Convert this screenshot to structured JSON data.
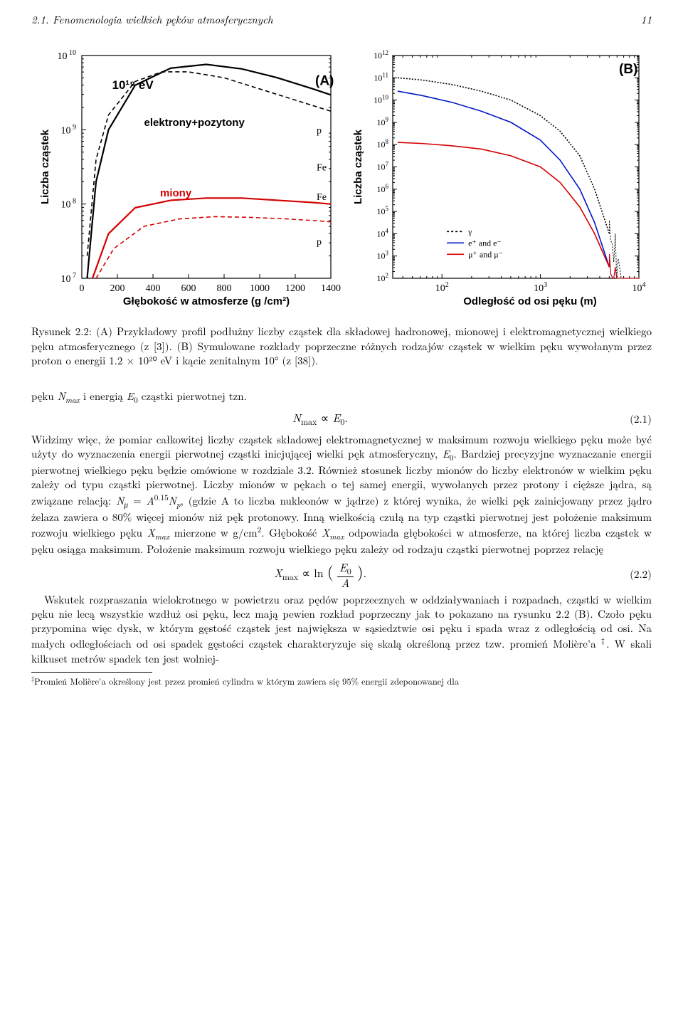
{
  "header": {
    "section": "2.1. Fenomenologia wielkich pęków atmosferycznych",
    "page": "11"
  },
  "figure": {
    "panelA": {
      "label": "(A)",
      "xlabel": "Głębokość w atmosferze (g /cm²)",
      "ylabel": "Liczba cząstek",
      "xlim": [
        0,
        1400
      ],
      "xticks": [
        0,
        200,
        400,
        600,
        800,
        1000,
        1200,
        1400
      ],
      "ylim_log10": [
        7,
        10
      ],
      "yticks_log10": [
        7,
        8,
        9,
        10
      ],
      "ytick_labels": [
        "10 ⁷",
        "10 ⁸",
        "10 ⁹",
        "10 ¹⁰"
      ],
      "annot_energy": "10¹⁹ eV",
      "label_ep": "elektrony+pozytony",
      "label_mu": "miony",
      "markers": [
        "p",
        "Fe",
        "Fe",
        "p"
      ],
      "colors": {
        "ep_solid": "#000000",
        "ep_dash": "#000000",
        "mu_solid": "#d40000",
        "mu_dash": "#d40000",
        "text_ep": "#000000",
        "text_mu": "#d40000"
      },
      "curves": {
        "ep_p_solid": [
          [
            30,
            7.0
          ],
          [
            80,
            8.3
          ],
          [
            150,
            9.0
          ],
          [
            300,
            9.6
          ],
          [
            500,
            9.83
          ],
          [
            700,
            9.88
          ],
          [
            900,
            9.82
          ],
          [
            1100,
            9.7
          ],
          [
            1300,
            9.55
          ],
          [
            1400,
            9.47
          ]
        ],
        "ep_Fe_dash": [
          [
            30,
            7.3
          ],
          [
            80,
            8.6
          ],
          [
            150,
            9.2
          ],
          [
            300,
            9.65
          ],
          [
            450,
            9.78
          ],
          [
            600,
            9.78
          ],
          [
            800,
            9.7
          ],
          [
            1000,
            9.55
          ],
          [
            1200,
            9.4
          ],
          [
            1400,
            9.25
          ]
        ],
        "mu_Fe_solid": [
          [
            60,
            7.0
          ],
          [
            150,
            7.6
          ],
          [
            300,
            7.95
          ],
          [
            500,
            8.05
          ],
          [
            700,
            8.08
          ],
          [
            900,
            8.08
          ],
          [
            1100,
            8.05
          ],
          [
            1300,
            8.02
          ],
          [
            1400,
            8.0
          ]
        ],
        "mu_p_dash": [
          [
            80,
            7.0
          ],
          [
            180,
            7.4
          ],
          [
            350,
            7.7
          ],
          [
            550,
            7.8
          ],
          [
            750,
            7.83
          ],
          [
            950,
            7.82
          ],
          [
            1150,
            7.8
          ],
          [
            1350,
            7.77
          ],
          [
            1400,
            7.76
          ]
        ]
      }
    },
    "panelB": {
      "label": "(B)",
      "xlabel": "Odległość od osi pęku (m)",
      "ylabel": "Liczba cząstek",
      "xlim_log10": [
        1.5,
        4
      ],
      "xticks_log10": [
        2,
        3,
        4
      ],
      "xtick_labels": [
        "10²",
        "10³",
        "10⁴"
      ],
      "ylim_log10": [
        2,
        12
      ],
      "yticks_log10": [
        2,
        3,
        4,
        5,
        6,
        7,
        8,
        9,
        10,
        11,
        12
      ],
      "legend": [
        {
          "label": "γ",
          "style": "dash",
          "color": "#000000"
        },
        {
          "label": "e⁺ and e⁻",
          "style": "solid",
          "color": "#0018c8"
        },
        {
          "label": "μ⁺ and μ⁻",
          "style": "solid",
          "color": "#d40000"
        }
      ],
      "curves": {
        "gamma": [
          [
            1.55,
            11.0
          ],
          [
            1.8,
            10.9
          ],
          [
            2.1,
            10.7
          ],
          [
            2.4,
            10.4
          ],
          [
            2.7,
            10.0
          ],
          [
            3.0,
            9.3
          ],
          [
            3.2,
            8.6
          ],
          [
            3.4,
            7.5
          ],
          [
            3.55,
            6.0
          ],
          [
            3.7,
            4.0
          ]
        ],
        "electrons": [
          [
            1.55,
            10.4
          ],
          [
            1.8,
            10.2
          ],
          [
            2.1,
            9.9
          ],
          [
            2.4,
            9.5
          ],
          [
            2.7,
            9.0
          ],
          [
            3.0,
            8.2
          ],
          [
            3.2,
            7.3
          ],
          [
            3.4,
            6.0
          ],
          [
            3.55,
            4.5
          ],
          [
            3.7,
            2.5
          ]
        ],
        "muons": [
          [
            1.55,
            8.1
          ],
          [
            1.8,
            8.05
          ],
          [
            2.1,
            7.95
          ],
          [
            2.4,
            7.8
          ],
          [
            2.7,
            7.5
          ],
          [
            3.0,
            7.0
          ],
          [
            3.2,
            6.3
          ],
          [
            3.4,
            5.2
          ],
          [
            3.55,
            4.0
          ],
          [
            3.7,
            2.5
          ]
        ]
      },
      "colors": {
        "gamma": "#000000",
        "electrons": "#0018c8",
        "muons": "#d40000"
      }
    }
  },
  "caption": {
    "lead": "Rysunek 2.2:",
    "text": " (A) Przykładowy profil podłużny liczby cząstek dla składowej hadronowej, mionowej i elektromagnetycznej wielkiego pęku atmosferycznego (z [3]). (B) Symulowane rozkłady poprzeczne różnych rodzajów cząstek w wielkim pęku wywołanym przez proton o energii 1.2 × 10²⁰ eV i kącie zenitalnym 10° (z [38])."
  },
  "body": {
    "p0": "pęku Nₘₐₓ i energią E₀ cząstki pierwotnej tzn.",
    "eq1": "Nₘₐₓ ∝ E₀.",
    "eq1_num": "(2.1)",
    "p1": "Widzimy więc, że pomiar całkowitej liczby cząstek składowej elektromagnetycznej w maksimum rozwoju wielkiego pęku może być użyty do wyznaczenia energii pierwotnej cząstki inicjującej wielki pęk atmosferyczny, E₀. Bardziej precyzyjne wyznaczanie energii pierwotnej wielkiego pęku będzie omówione w rozdziale 3.2. Również stosunek liczby mionów do liczby elektronów w wielkim pęku zależy od typu cząstki pierwotnej. Liczby mionów w pękach o tej samej energii, wywołanych przez protony i cięższe jądra, są związane relacją: N_μ = A⁰·¹⁵N_p, (gdzie A to liczba nukleonów w jądrze) z której wynika, że wielki pęk zainicjowany przez jądro żelaza zawiera o 80% więcej mionów niż pęk protonowy. Inną wielkością czułą na typ cząstki pierwotnej jest położenie maksimum rozwoju wielkiego pęku Xₘₐₓ mierzone w g/cm². Głębokość Xₘₐₓ odpowiada głębokości w atmosferze, na której liczba cząstek w pęku osiąga maksimum. Położenie maksimum rozwoju wielkiego pęku zależy od rodzaju cząstki pierwotnej poprzez relację",
    "eq2": "Xₘₐₓ ∝ ln ( E₀ / A ).",
    "eq2_num": "(2.2)",
    "p2": "Wskutek rozpraszania wielokrotnego w powietrzu oraz pędów poprzecznych w oddziaływaniach i rozpadach, cząstki w wielkim pęku nie lecą wszystkie wzdłuż osi pęku, lecz mają pewien rozkład poprzeczny jak to pokazano na rysunku 2.2 (B). Czoło pęku przypomina więc dysk, w którym gęstość cząstek jest największa w sąsiedztwie osi pęku i spada wraz z odległością od osi. Na małych odległościach od osi spadek gęstości cząstek charakteryzuje się skalą określoną przez tzw. promień Molière'a ‡. W skali kilkuset metrów spadek ten jest wolniej-"
  },
  "footnote": {
    "marker": "‡",
    "text": "Promień Molière'a określony jest przez promień cylindra w którym zawiera się 95% energii zdeponowanej dla"
  }
}
